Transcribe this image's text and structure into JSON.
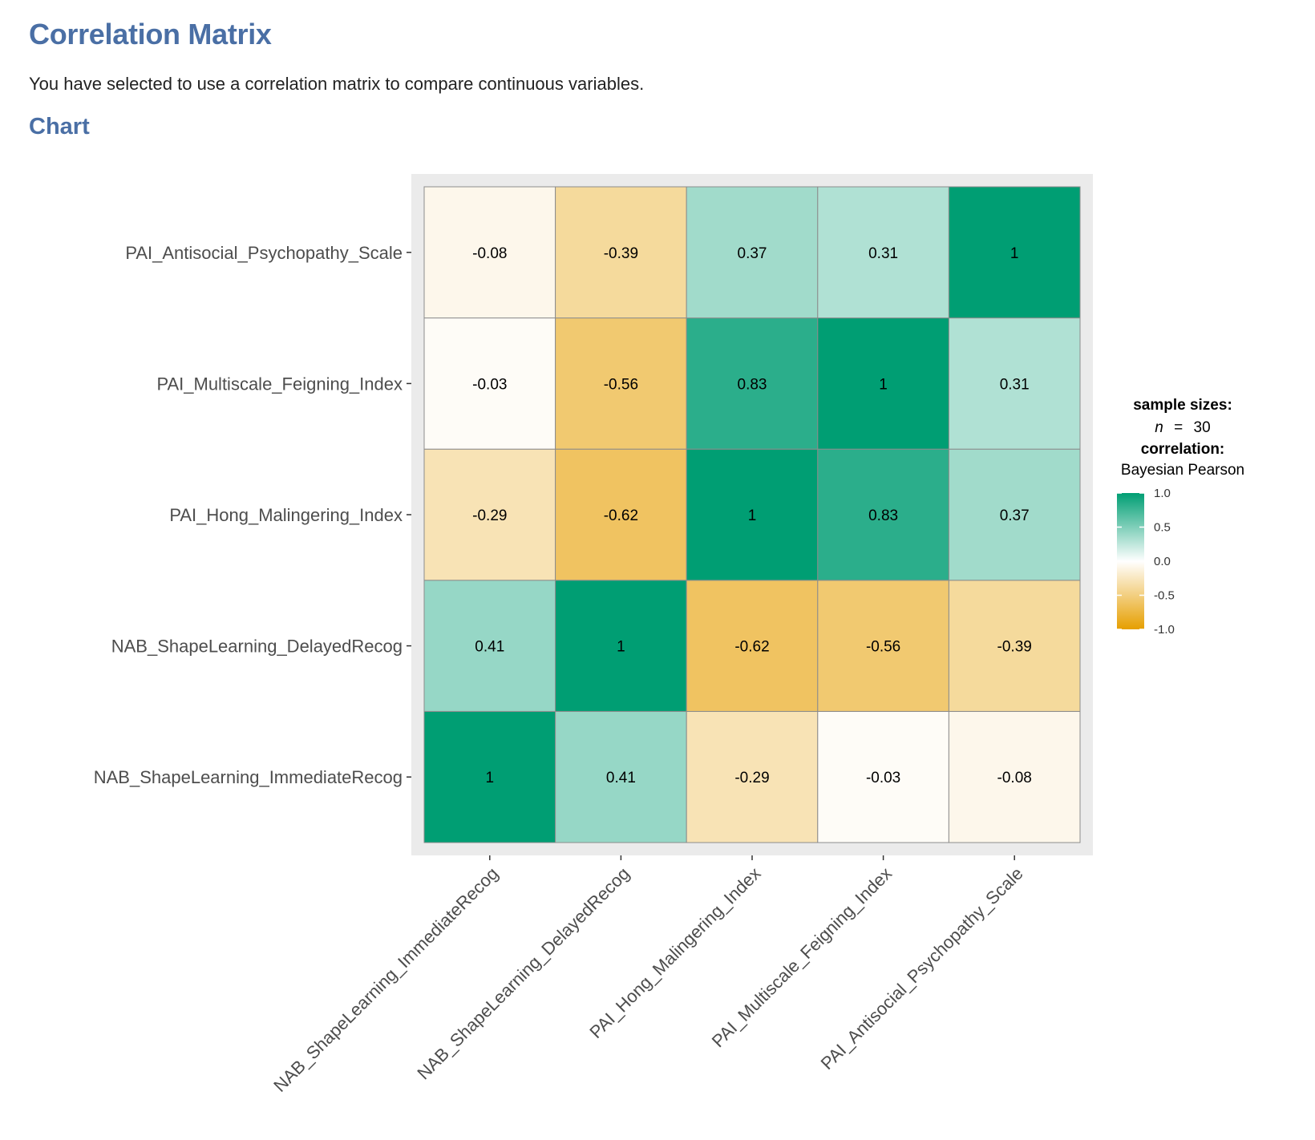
{
  "page": {
    "title": "Correlation Matrix",
    "description": "You have selected to use a correlation matrix to compare continuous variables.",
    "section_title": "Chart"
  },
  "chart_data": {
    "type": "heatmap",
    "variables": [
      "NAB_ShapeLearning_ImmediateRecog",
      "NAB_ShapeLearning_DelayedRecog",
      "PAI_Hong_Malingering_Index",
      "PAI_Multiscale_Feigning_Index",
      "PAI_Antisocial_Psychopathy_Scale"
    ],
    "matrix": [
      [
        1,
        0.41,
        -0.29,
        -0.03,
        -0.08
      ],
      [
        0.41,
        1,
        -0.62,
        -0.56,
        -0.39
      ],
      [
        -0.29,
        -0.62,
        1,
        0.83,
        0.37
      ],
      [
        -0.03,
        -0.56,
        0.83,
        1,
        0.31
      ],
      [
        -0.08,
        -0.39,
        0.37,
        0.31,
        1
      ]
    ],
    "cell_labels": [
      [
        "1",
        "0.41",
        "-0.29",
        "-0.03",
        "-0.08"
      ],
      [
        "0.41",
        "1",
        "-0.62",
        "-0.56",
        "-0.39"
      ],
      [
        "-0.29",
        "-0.62",
        "1",
        "0.83",
        "0.37"
      ],
      [
        "-0.03",
        "-0.56",
        "0.83",
        "1",
        "0.31"
      ],
      [
        "-0.08",
        "-0.39",
        "0.37",
        "0.31",
        "1"
      ]
    ],
    "legend": {
      "sample_sizes_title": "sample sizes:",
      "n_symbol": "n",
      "n_equals": "=",
      "n_value": "30",
      "correlation_title": "correlation:",
      "correlation_method": "Bayesian Pearson",
      "ticks": [
        1.0,
        0.5,
        0.0,
        -0.5,
        -1.0
      ],
      "tick_labels": [
        "1.0",
        "0.5",
        "0.0",
        "-0.5",
        "-1.0"
      ],
      "colors": {
        "high": "#009E73",
        "mid": "#FFFFFF",
        "low": "#E69F00"
      },
      "placement": "right"
    },
    "panel_background": "#EBEBEB",
    "limits": [
      -1,
      1
    ]
  }
}
